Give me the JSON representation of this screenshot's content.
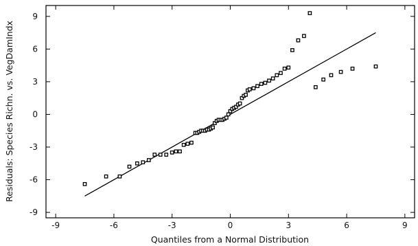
{
  "chart_data": {
    "type": "scatter",
    "title": "",
    "xlabel": "Quantiles from a Normal Distribution",
    "ylabel": "Residuals: Species Richn. vs. VegDamIndx",
    "xlim": [
      -9.5,
      9.5
    ],
    "ylim": [
      -9.5,
      10
    ],
    "xticks": [
      -9,
      -6,
      -3,
      0,
      3,
      6,
      9
    ],
    "yticks": [
      -9,
      -6,
      -3,
      0,
      3,
      6,
      9
    ],
    "grid": false,
    "legend": "none",
    "reference_line": {
      "x": [
        -7.5,
        7.5
      ],
      "y": [
        -7.5,
        7.5
      ]
    },
    "series": [
      {
        "marker": "square",
        "x": [
          -7.5,
          -6.4,
          -5.7,
          -5.2,
          -4.8,
          -4.5,
          -4.2,
          -3.9,
          -3.6,
          -3.3,
          -3.0,
          -2.8,
          -2.6,
          -2.4,
          -2.2,
          -2.0,
          -1.8,
          -1.7,
          -1.6,
          -1.5,
          -1.4,
          -1.3,
          -1.2,
          -1.1,
          -1.0,
          -0.9,
          -0.8,
          -0.7,
          -0.6,
          -0.5,
          -0.4,
          -0.3,
          -0.2,
          -0.1,
          0.0,
          0.1,
          0.2,
          0.3,
          0.4,
          0.5,
          0.6,
          0.7,
          0.8,
          0.9,
          1.0,
          1.2,
          1.4,
          1.6,
          1.8,
          2.0,
          2.2,
          2.4,
          2.6,
          2.8,
          3.0,
          3.2,
          3.5,
          3.8,
          4.1,
          4.4,
          4.8,
          5.2,
          5.7,
          6.3,
          7.5
        ],
        "y": [
          -6.4,
          -5.7,
          -5.7,
          -4.8,
          -4.5,
          -4.4,
          -4.2,
          -3.7,
          -3.7,
          -3.7,
          -3.5,
          -3.4,
          -3.4,
          -2.8,
          -2.7,
          -2.6,
          -1.7,
          -1.7,
          -1.6,
          -1.5,
          -1.5,
          -1.5,
          -1.4,
          -1.4,
          -1.3,
          -1.2,
          -0.8,
          -0.6,
          -0.5,
          -0.5,
          -0.5,
          -0.4,
          -0.3,
          0.0,
          0.3,
          0.5,
          0.6,
          0.7,
          0.9,
          1.0,
          1.5,
          1.7,
          1.8,
          2.2,
          2.3,
          2.4,
          2.6,
          2.8,
          2.9,
          3.1,
          3.3,
          3.6,
          3.8,
          4.2,
          4.3,
          5.9,
          6.8,
          7.2,
          9.3,
          2.5,
          3.2,
          3.6,
          3.9,
          4.2,
          4.4
        ]
      }
    ]
  }
}
